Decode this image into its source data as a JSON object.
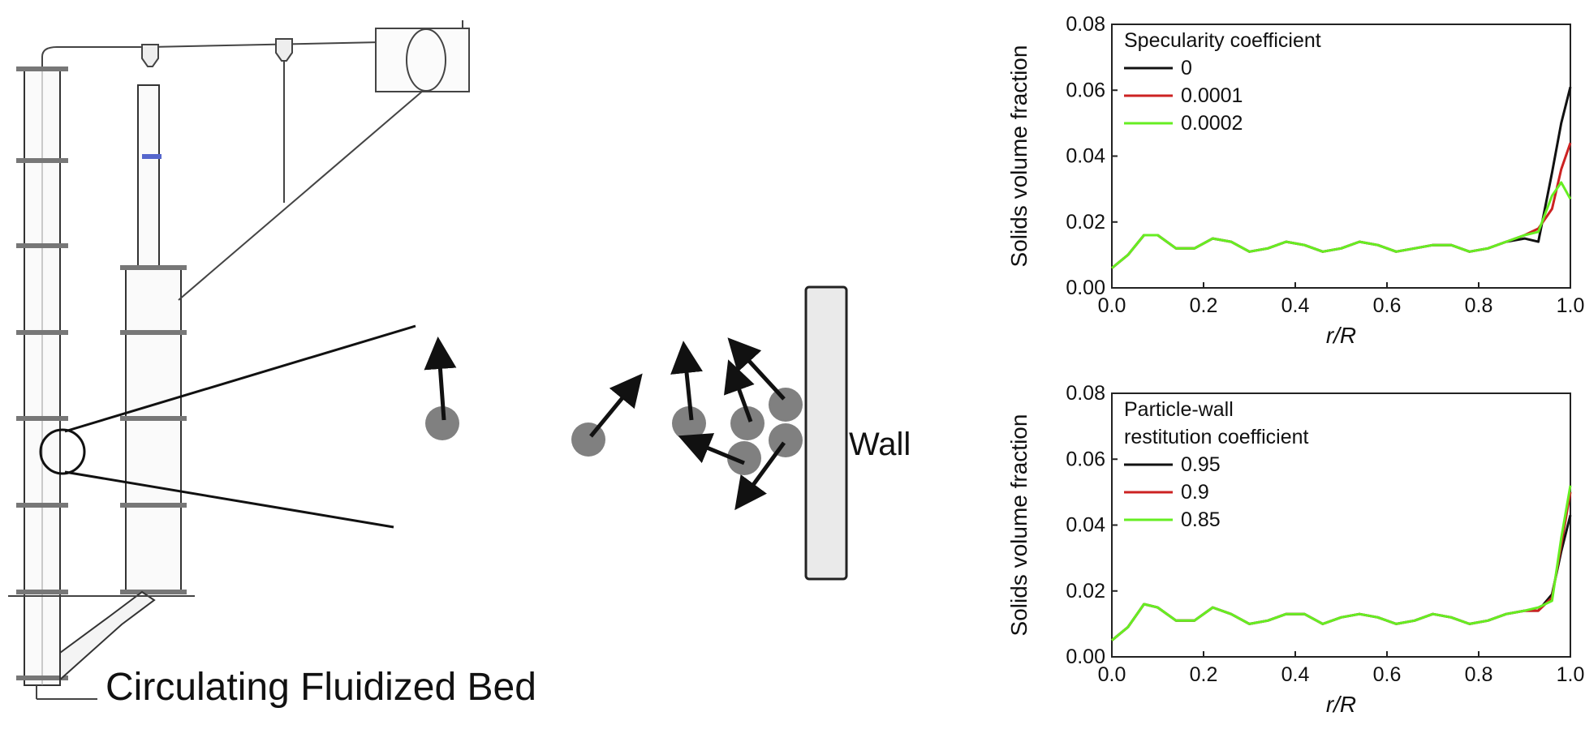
{
  "diagram": {
    "caption": "Circulating Fluidized Bed",
    "wall_label": "Wall"
  },
  "chart_data": [
    {
      "type": "line",
      "xlabel": "r/R",
      "ylabel": "Solids volume fraction",
      "xlim": [
        0.0,
        1.0
      ],
      "ylim": [
        0.0,
        0.08
      ],
      "xticks": [
        "0.0",
        "0.2",
        "0.4",
        "0.6",
        "0.8",
        "1.0"
      ],
      "yticks": [
        "0.00",
        "0.02",
        "0.04",
        "0.06",
        "0.08"
      ],
      "legend_title": [
        "Specularity coefficient"
      ],
      "legend_position": "top-left",
      "x": [
        0.0,
        0.035,
        0.07,
        0.1,
        0.14,
        0.18,
        0.22,
        0.26,
        0.3,
        0.34,
        0.38,
        0.42,
        0.46,
        0.5,
        0.54,
        0.58,
        0.62,
        0.66,
        0.7,
        0.74,
        0.78,
        0.82,
        0.86,
        0.9,
        0.93,
        0.96,
        0.98,
        1.0
      ],
      "series": [
        {
          "name": "0",
          "color": "#111111",
          "values": [
            0.006,
            0.01,
            0.016,
            0.016,
            0.012,
            0.012,
            0.015,
            0.014,
            0.011,
            0.012,
            0.014,
            0.013,
            0.011,
            0.012,
            0.014,
            0.013,
            0.011,
            0.012,
            0.013,
            0.013,
            0.011,
            0.012,
            0.014,
            0.015,
            0.014,
            0.035,
            0.05,
            0.061
          ]
        },
        {
          "name": "0.0001",
          "color": "#cc2222",
          "values": [
            0.006,
            0.01,
            0.016,
            0.016,
            0.012,
            0.012,
            0.015,
            0.014,
            0.011,
            0.012,
            0.014,
            0.013,
            0.011,
            0.012,
            0.014,
            0.013,
            0.011,
            0.012,
            0.013,
            0.013,
            0.011,
            0.012,
            0.014,
            0.016,
            0.018,
            0.024,
            0.036,
            0.044
          ]
        },
        {
          "name": "0.0002",
          "color": "#66ee22",
          "values": [
            0.006,
            0.01,
            0.016,
            0.016,
            0.012,
            0.012,
            0.015,
            0.014,
            0.011,
            0.012,
            0.014,
            0.013,
            0.011,
            0.012,
            0.014,
            0.013,
            0.011,
            0.012,
            0.013,
            0.013,
            0.011,
            0.012,
            0.014,
            0.016,
            0.017,
            0.028,
            0.032,
            0.027
          ]
        }
      ]
    },
    {
      "type": "line",
      "xlabel": "r/R",
      "ylabel": "Solids volume fraction",
      "xlim": [
        0.0,
        1.0
      ],
      "ylim": [
        0.0,
        0.08
      ],
      "xticks": [
        "0.0",
        "0.2",
        "0.4",
        "0.6",
        "0.8",
        "1.0"
      ],
      "yticks": [
        "0.00",
        "0.02",
        "0.04",
        "0.06",
        "0.08"
      ],
      "legend_title": [
        "Particle-wall",
        "restitution coefficient"
      ],
      "legend_position": "top-left",
      "x": [
        0.0,
        0.035,
        0.07,
        0.1,
        0.14,
        0.18,
        0.22,
        0.26,
        0.3,
        0.34,
        0.38,
        0.42,
        0.46,
        0.5,
        0.54,
        0.58,
        0.62,
        0.66,
        0.7,
        0.74,
        0.78,
        0.82,
        0.86,
        0.9,
        0.93,
        0.96,
        0.98,
        1.0
      ],
      "series": [
        {
          "name": "0.95",
          "color": "#111111",
          "values": [
            0.005,
            0.009,
            0.016,
            0.015,
            0.011,
            0.011,
            0.015,
            0.013,
            0.01,
            0.011,
            0.013,
            0.013,
            0.01,
            0.012,
            0.013,
            0.012,
            0.01,
            0.011,
            0.013,
            0.012,
            0.01,
            0.011,
            0.013,
            0.014,
            0.014,
            0.019,
            0.032,
            0.043
          ]
        },
        {
          "name": "0.9",
          "color": "#cc2222",
          "values": [
            0.005,
            0.009,
            0.016,
            0.015,
            0.011,
            0.011,
            0.015,
            0.013,
            0.01,
            0.011,
            0.013,
            0.013,
            0.01,
            0.012,
            0.013,
            0.012,
            0.01,
            0.011,
            0.013,
            0.012,
            0.01,
            0.011,
            0.013,
            0.014,
            0.014,
            0.018,
            0.034,
            0.05
          ]
        },
        {
          "name": "0.85",
          "color": "#66ee22",
          "values": [
            0.005,
            0.009,
            0.016,
            0.015,
            0.011,
            0.011,
            0.015,
            0.013,
            0.01,
            0.011,
            0.013,
            0.013,
            0.01,
            0.012,
            0.013,
            0.012,
            0.01,
            0.011,
            0.013,
            0.012,
            0.01,
            0.011,
            0.013,
            0.014,
            0.015,
            0.017,
            0.036,
            0.052
          ]
        }
      ]
    }
  ]
}
